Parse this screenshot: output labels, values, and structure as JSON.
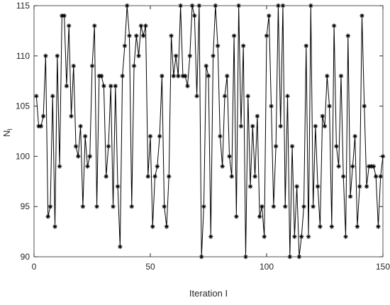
{
  "chart_data": {
    "type": "line",
    "xlabel": "Iteration I",
    "ylabel": [
      "N",
      "I"
    ],
    "x": [
      1,
      2,
      3,
      4,
      5,
      6,
      7,
      8,
      9,
      10,
      11,
      12,
      13,
      14,
      15,
      16,
      17,
      18,
      19,
      20,
      21,
      22,
      23,
      24,
      25,
      26,
      27,
      28,
      29,
      30,
      31,
      32,
      33,
      34,
      35,
      36,
      37,
      38,
      39,
      40,
      41,
      42,
      43,
      44,
      45,
      46,
      47,
      48,
      49,
      50,
      51,
      52,
      53,
      54,
      55,
      56,
      57,
      58,
      59,
      60,
      61,
      62,
      63,
      64,
      65,
      66,
      67,
      68,
      69,
      70,
      71,
      72,
      73,
      74,
      75,
      76,
      77,
      78,
      79,
      80,
      81,
      82,
      83,
      84,
      85,
      86,
      87,
      88,
      89,
      90,
      91,
      92,
      93,
      94,
      95,
      96,
      97,
      98,
      99,
      100,
      101,
      102,
      103,
      104,
      105,
      106,
      107,
      108,
      109,
      110,
      111,
      112,
      113,
      114,
      115,
      116,
      117,
      118,
      119,
      120,
      121,
      122,
      123,
      124,
      125,
      126,
      127,
      128,
      129,
      130,
      131,
      132,
      133,
      134,
      135,
      136,
      137,
      138,
      139,
      140,
      141,
      142,
      143,
      144,
      145,
      146,
      147,
      148,
      149,
      150
    ],
    "series": [
      {
        "name": "N_I",
        "color": "#000000",
        "values": [
          106,
          103,
          103,
          104,
          110,
          94,
          95,
          106,
          93,
          110,
          99,
          114,
          114,
          107,
          113,
          104,
          109,
          101,
          100,
          103,
          95,
          102,
          99,
          100,
          109,
          113,
          95,
          108,
          108,
          107,
          98,
          101,
          107,
          95,
          107,
          97,
          91,
          108,
          111,
          115,
          112,
          95,
          109,
          112,
          110,
          113,
          112,
          113,
          98,
          102,
          93,
          98,
          99,
          102,
          108,
          95,
          93,
          98,
          112,
          108,
          110,
          108,
          115,
          108,
          108,
          107,
          110,
          115,
          114,
          106,
          115,
          90,
          95,
          109,
          108,
          92,
          110,
          115,
          111,
          102,
          99,
          106,
          108,
          100,
          98,
          112,
          94,
          115,
          103,
          111,
          90,
          106,
          97,
          103,
          98,
          104,
          94,
          95,
          92,
          112,
          114,
          105,
          95,
          101,
          115,
          103,
          115,
          95,
          106,
          90,
          101,
          92,
          97,
          90,
          92,
          95,
          111,
          92,
          115,
          95,
          103,
          97,
          93,
          104,
          103,
          108,
          105,
          93,
          113,
          101,
          99,
          108,
          98,
          92,
          112,
          96,
          99,
          102,
          93,
          97,
          114,
          105,
          97,
          99,
          99,
          99,
          98,
          93,
          98,
          100
        ]
      }
    ],
    "xlim": [
      0,
      150
    ],
    "ylim": [
      90,
      115
    ],
    "xticks": [
      0,
      50,
      100,
      150
    ],
    "yticks": [
      90,
      95,
      100,
      105,
      110,
      115
    ]
  }
}
